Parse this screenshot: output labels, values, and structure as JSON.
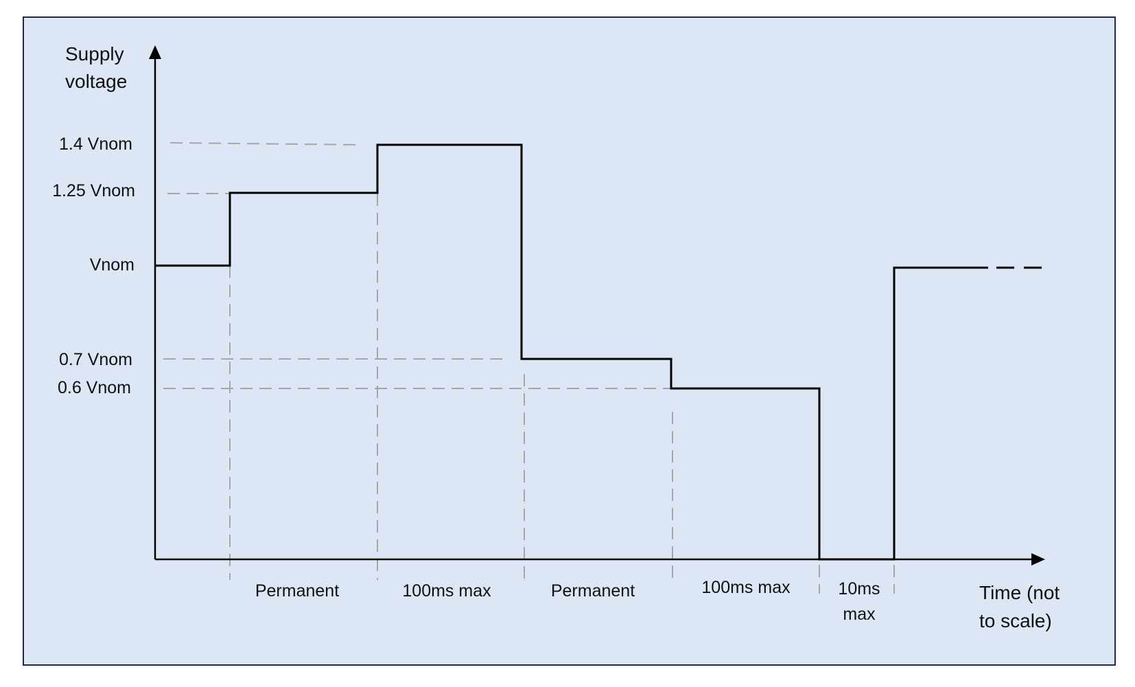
{
  "diagram": {
    "title": "",
    "y_axis_label": [
      "Supply",
      "voltage"
    ],
    "x_axis_label": [
      "Time (not",
      "to scale)"
    ],
    "y_levels": [
      {
        "key": "1.4",
        "label": "1.4 Vnom",
        "value": 1.4
      },
      {
        "key": "1.25",
        "label": "1.25 Vnom",
        "value": 1.25
      },
      {
        "key": "1.0",
        "label": "Vnom",
        "value": 1.0
      },
      {
        "key": "0.7",
        "label": "0.7 Vnom",
        "value": 0.7
      },
      {
        "key": "0.6",
        "label": "0.6 Vnom",
        "value": 0.6
      }
    ],
    "segments": [
      {
        "label": [
          "Permanent"
        ],
        "level": 1.25
      },
      {
        "label": [
          "100ms max"
        ],
        "level": 1.4
      },
      {
        "label": [
          "Permanent"
        ],
        "level": 0.7
      },
      {
        "label": [
          "100ms max"
        ],
        "level": 0.6
      },
      {
        "label": [
          "10ms",
          "max"
        ],
        "level": 0.0
      }
    ],
    "initial_level": 1.0,
    "final_level": 1.0,
    "continuation": "dashed",
    "colors": {
      "background": "#dce6f4",
      "border": "#1f2a44",
      "line": "#000000",
      "guides": "#a6a6a6"
    }
  }
}
